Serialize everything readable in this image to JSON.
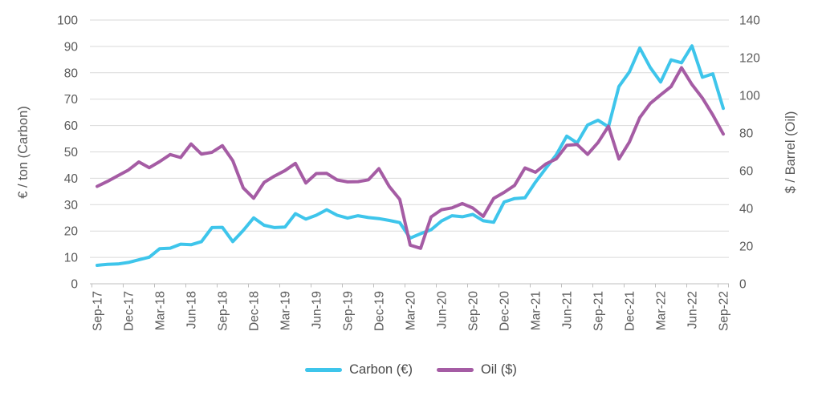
{
  "chart_data": {
    "type": "line",
    "title": "",
    "x": [
      "Sep-17",
      "Oct-17",
      "Nov-17",
      "Dec-17",
      "Jan-18",
      "Feb-18",
      "Mar-18",
      "Apr-18",
      "May-18",
      "Jun-18",
      "Jul-18",
      "Aug-18",
      "Sep-18",
      "Oct-18",
      "Nov-18",
      "Dec-18",
      "Jan-19",
      "Feb-19",
      "Mar-19",
      "Apr-19",
      "May-19",
      "Jun-19",
      "Jul-19",
      "Aug-19",
      "Sep-19",
      "Oct-19",
      "Nov-19",
      "Dec-19",
      "Jan-20",
      "Feb-20",
      "Mar-20",
      "Apr-20",
      "May-20",
      "Jun-20",
      "Jul-20",
      "Aug-20",
      "Sep-20",
      "Oct-20",
      "Nov-20",
      "Dec-20",
      "Jan-21",
      "Feb-21",
      "Mar-21",
      "Apr-21",
      "May-21",
      "Jun-21",
      "Jul-21",
      "Aug-21",
      "Sep-21",
      "Oct-21",
      "Nov-21",
      "Dec-21",
      "Jan-22",
      "Feb-22",
      "Mar-22",
      "Apr-22",
      "May-22",
      "Jun-22",
      "Jul-22",
      "Aug-22",
      "Sep-22"
    ],
    "x_tick_every": 3,
    "x_tick_labels": [
      "Sep-17",
      "Dec-17",
      "Mar-18",
      "Jun-18",
      "Sep-18",
      "Dec-18",
      "Mar-19",
      "Jun-19",
      "Sep-19",
      "Dec-19",
      "Mar-20",
      "Jun-20",
      "Sep-20",
      "Dec-20",
      "Mar-21",
      "Jun-21",
      "Sep-21",
      "Dec-21",
      "Mar-22",
      "Jun-22",
      "Sep-22"
    ],
    "series": [
      {
        "name": "Carbon (€)",
        "axis": "left",
        "color": "#3EC5EB",
        "values": [
          7.0,
          7.4,
          7.5,
          8.1,
          9.1,
          10.1,
          13.3,
          13.5,
          15.0,
          14.8,
          16.0,
          21.3,
          21.4,
          16.0,
          20.2,
          25.0,
          22.2,
          21.3,
          21.5,
          26.6,
          24.5,
          26.0,
          28.1,
          26.0,
          24.9,
          25.8,
          25.1,
          24.7,
          24.0,
          23.2,
          17.3,
          19.0,
          20.5,
          23.8,
          25.8,
          25.4,
          26.3,
          23.9,
          23.3,
          31.0,
          32.3,
          32.6,
          38.5,
          43.8,
          48.9,
          56.0,
          53.4,
          60.2,
          62.0,
          59.5,
          74.8,
          80.3,
          89.4,
          82.0,
          76.5,
          84.9,
          83.8,
          90.2,
          78.3,
          79.6,
          66.5
        ]
      },
      {
        "name": "Oil ($)",
        "axis": "right",
        "color": "#A55CA4",
        "values": [
          51.7,
          54.4,
          57.4,
          60.4,
          64.7,
          61.6,
          64.9,
          68.6,
          67.0,
          74.2,
          68.8,
          69.8,
          73.3,
          65.3,
          50.9,
          45.4,
          53.8,
          57.2,
          60.1,
          63.9,
          53.5,
          58.5,
          58.6,
          55.1,
          54.1,
          54.2,
          55.2,
          61.1,
          51.6,
          44.8,
          20.5,
          18.8,
          35.5,
          39.3,
          40.3,
          42.6,
          40.2,
          35.8,
          45.3,
          48.5,
          52.2,
          61.5,
          59.2,
          63.6,
          66.3,
          73.5,
          73.9,
          68.7,
          75.0,
          83.6,
          66.2,
          75.2,
          88.2,
          95.7,
          100.3,
          104.7,
          114.7,
          105.8,
          98.6,
          89.6,
          79.5
        ]
      }
    ],
    "left_axis": {
      "title": "€ / ton (Carbon)",
      "min": 0,
      "max": 100,
      "step": 10
    },
    "right_axis": {
      "title": "$ / Barrel (Oil)",
      "min": 0,
      "max": 140,
      "step": 20
    },
    "grid": true,
    "legend_position": "bottom"
  },
  "styles": {
    "grid_color": "#D9D9D9",
    "axis_line_color": "#BFBFBF",
    "tick_color": "#BFBFBF",
    "label_color": "#595959",
    "background": "#FFFFFF"
  }
}
